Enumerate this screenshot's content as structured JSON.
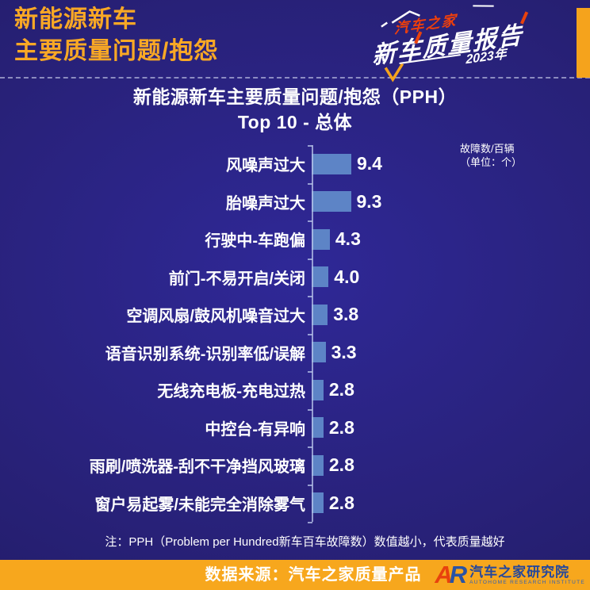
{
  "header": {
    "title_line1": "新能源新车",
    "title_line2": "主要质量问题/抱怨"
  },
  "brand_badge": {
    "brand": "汽车之家",
    "report_title": "新车质量报告",
    "year": "2023年"
  },
  "chart": {
    "title_line1": "新能源新车主要质量问题/抱怨（PPH）",
    "title_line2": "Top 10 - 总体",
    "unit_line1": "故障数/百辆",
    "unit_line2": "（单位：个）",
    "note": "注：PPH（Problem per Hundred新车百车故障数）数值越小，代表质量越好"
  },
  "chart_data": {
    "type": "bar",
    "orientation": "horizontal",
    "title": "新能源新车主要质量问题/抱怨（PPH）Top 10 - 总体",
    "categories": [
      "风噪声过大",
      "胎噪声过大",
      "行驶中-车跑偏",
      "前门-不易开启/关闭",
      "空调风扇/鼓风机噪音过大",
      "语音识别系统-识别率低/误解",
      "无线充电板-充电过热",
      "中控台-有异响",
      "雨刷/喷洗器-刮不干净挡风玻璃",
      "窗户易起雾/未能完全消除雾气"
    ],
    "values": [
      9.4,
      9.3,
      4.3,
      4.0,
      3.8,
      3.3,
      2.8,
      2.8,
      2.8,
      2.8
    ],
    "value_labels": [
      "9.4",
      "9.3",
      "4.3",
      "4.0",
      "3.8",
      "3.3",
      "2.8",
      "2.8",
      "2.8",
      "2.8"
    ],
    "unit": "故障数/百辆（单位：个）",
    "xlabel": "",
    "ylabel": "",
    "xlim": [
      0,
      10
    ],
    "grid": false,
    "legend_position": "top-right",
    "bar_color": "#5d84c6"
  },
  "footer": {
    "source": "数据来源：汽车之家质量产品",
    "logo_text_a": "A",
    "logo_text_r": "R",
    "institute_cn": "汽车之家研究院",
    "institute_en": "AUTOHOME RESEARCH INSTITUTE"
  },
  "colors": {
    "background_center": "#2f2897",
    "background_edge": "#1f1a61",
    "accent_orange": "#f5a31c",
    "footer_orange": "#f7a71d",
    "title_orange": "#f9a825",
    "bar_blue": "#5d84c6",
    "brand_red": "#ee3f0c",
    "institute_blue": "#24479c",
    "text_white": "#ffffff"
  }
}
